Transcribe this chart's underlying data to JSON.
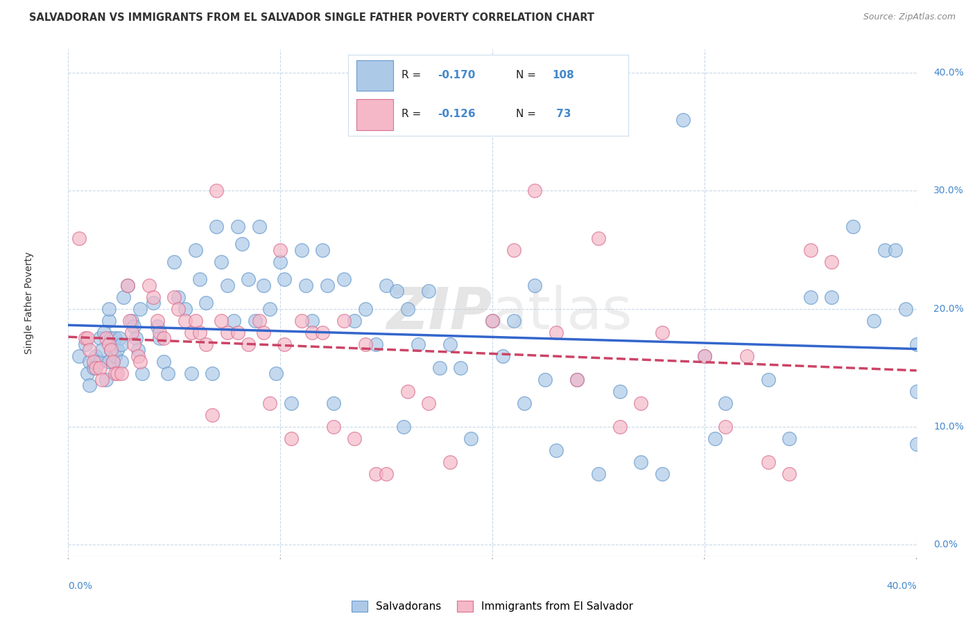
{
  "title": "SALVADORAN VS IMMIGRANTS FROM EL SALVADOR SINGLE FATHER POVERTY CORRELATION CHART",
  "source": "Source: ZipAtlas.com",
  "ylabel": "Single Father Poverty",
  "watermark": "ZIPatlas",
  "legend_labels": [
    "Salvadorans",
    "Immigrants from El Salvador"
  ],
  "R_blue": -0.17,
  "N_blue": 108,
  "R_pink": -0.126,
  "N_pink": 73,
  "blue_scatter_color": "#adc9e8",
  "blue_edge_color": "#6699cc",
  "pink_scatter_color": "#f5b8c8",
  "pink_edge_color": "#d97090",
  "blue_line_color": "#3366cc",
  "pink_line_color": "#cc4466",
  "grid_color": "#c8d8e8",
  "background_color": "#ffffff",
  "text_color": "#333333",
  "source_color": "#888888",
  "right_tick_color": "#4488cc",
  "xlim": [
    0.0,
    0.4
  ],
  "ylim": [
    -0.01,
    0.42
  ],
  "blue_scatter_x": [
    0.005,
    0.008,
    0.009,
    0.01,
    0.01,
    0.012,
    0.013,
    0.015,
    0.015,
    0.016,
    0.017,
    0.018,
    0.019,
    0.019,
    0.019,
    0.02,
    0.02,
    0.021,
    0.022,
    0.022,
    0.023,
    0.024,
    0.025,
    0.025,
    0.026,
    0.028,
    0.03,
    0.031,
    0.032,
    0.033,
    0.034,
    0.035,
    0.04,
    0.042,
    0.043,
    0.045,
    0.047,
    0.05,
    0.052,
    0.055,
    0.058,
    0.06,
    0.062,
    0.065,
    0.068,
    0.07,
    0.072,
    0.075,
    0.078,
    0.08,
    0.082,
    0.085,
    0.088,
    0.09,
    0.092,
    0.095,
    0.098,
    0.1,
    0.102,
    0.105,
    0.11,
    0.112,
    0.115,
    0.12,
    0.122,
    0.125,
    0.13,
    0.135,
    0.14,
    0.145,
    0.15,
    0.155,
    0.158,
    0.16,
    0.165,
    0.17,
    0.175,
    0.18,
    0.185,
    0.19,
    0.2,
    0.205,
    0.21,
    0.215,
    0.22,
    0.225,
    0.23,
    0.24,
    0.25,
    0.26,
    0.27,
    0.28,
    0.29,
    0.3,
    0.305,
    0.31,
    0.33,
    0.34,
    0.35,
    0.36,
    0.37,
    0.38,
    0.385,
    0.39,
    0.395,
    0.4,
    0.4,
    0.4
  ],
  "blue_scatter_y": [
    0.16,
    0.17,
    0.145,
    0.135,
    0.155,
    0.15,
    0.16,
    0.175,
    0.155,
    0.165,
    0.18,
    0.14,
    0.19,
    0.2,
    0.155,
    0.165,
    0.175,
    0.155,
    0.175,
    0.16,
    0.165,
    0.175,
    0.155,
    0.17,
    0.21,
    0.22,
    0.19,
    0.185,
    0.175,
    0.165,
    0.2,
    0.145,
    0.205,
    0.185,
    0.175,
    0.155,
    0.145,
    0.24,
    0.21,
    0.2,
    0.145,
    0.25,
    0.225,
    0.205,
    0.145,
    0.27,
    0.24,
    0.22,
    0.19,
    0.27,
    0.255,
    0.225,
    0.19,
    0.27,
    0.22,
    0.2,
    0.145,
    0.24,
    0.225,
    0.12,
    0.25,
    0.22,
    0.19,
    0.25,
    0.22,
    0.12,
    0.225,
    0.19,
    0.2,
    0.17,
    0.22,
    0.215,
    0.1,
    0.2,
    0.17,
    0.215,
    0.15,
    0.17,
    0.15,
    0.09,
    0.19,
    0.16,
    0.19,
    0.12,
    0.22,
    0.14,
    0.08,
    0.14,
    0.06,
    0.13,
    0.07,
    0.06,
    0.36,
    0.16,
    0.09,
    0.12,
    0.14,
    0.09,
    0.21,
    0.21,
    0.27,
    0.19,
    0.25,
    0.25,
    0.2,
    0.17,
    0.13,
    0.085
  ],
  "pink_scatter_x": [
    0.005,
    0.008,
    0.009,
    0.01,
    0.012,
    0.013,
    0.015,
    0.016,
    0.018,
    0.019,
    0.02,
    0.021,
    0.022,
    0.023,
    0.025,
    0.028,
    0.029,
    0.03,
    0.031,
    0.033,
    0.034,
    0.038,
    0.04,
    0.042,
    0.043,
    0.045,
    0.05,
    0.052,
    0.055,
    0.058,
    0.06,
    0.062,
    0.065,
    0.068,
    0.07,
    0.072,
    0.075,
    0.08,
    0.085,
    0.09,
    0.092,
    0.095,
    0.1,
    0.102,
    0.105,
    0.11,
    0.115,
    0.12,
    0.125,
    0.13,
    0.135,
    0.14,
    0.145,
    0.15,
    0.16,
    0.17,
    0.18,
    0.2,
    0.21,
    0.22,
    0.23,
    0.24,
    0.25,
    0.26,
    0.27,
    0.28,
    0.3,
    0.31,
    0.32,
    0.33,
    0.34,
    0.35,
    0.36
  ],
  "pink_scatter_y": [
    0.26,
    0.175,
    0.175,
    0.165,
    0.155,
    0.15,
    0.15,
    0.14,
    0.175,
    0.17,
    0.165,
    0.155,
    0.145,
    0.145,
    0.145,
    0.22,
    0.19,
    0.18,
    0.17,
    0.16,
    0.155,
    0.22,
    0.21,
    0.19,
    0.18,
    0.175,
    0.21,
    0.2,
    0.19,
    0.18,
    0.19,
    0.18,
    0.17,
    0.11,
    0.3,
    0.19,
    0.18,
    0.18,
    0.17,
    0.19,
    0.18,
    0.12,
    0.25,
    0.17,
    0.09,
    0.19,
    0.18,
    0.18,
    0.1,
    0.19,
    0.09,
    0.17,
    0.06,
    0.06,
    0.13,
    0.12,
    0.07,
    0.19,
    0.25,
    0.3,
    0.18,
    0.14,
    0.26,
    0.1,
    0.12,
    0.18,
    0.16,
    0.1,
    0.16,
    0.07,
    0.06,
    0.25,
    0.24
  ]
}
